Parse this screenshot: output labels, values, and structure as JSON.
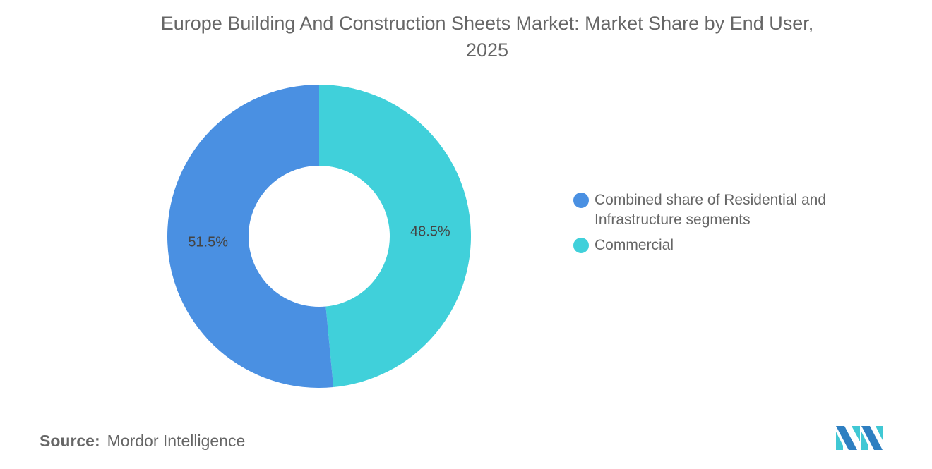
{
  "chart_data": {
    "type": "pie",
    "donut": true,
    "title": "Europe Building And Construction Sheets Market: Market Share by End User, 2025",
    "slices": [
      {
        "label": "Combined share of Residential and Infrastructure segments",
        "value": 51.5,
        "data_label": "51.5%",
        "color": "#4a90e2"
      },
      {
        "label": "Commercial",
        "value": 48.5,
        "data_label": "48.5%",
        "color": "#40d0da"
      }
    ],
    "legend_position": "right"
  },
  "title_line1": "Europe Building And Construction Sheets Market: Market Share by End User,",
  "title_line2": "2025",
  "source_label": "Source:",
  "source_value": "Mordor Intelligence",
  "logo_text": "Mordor Intelligence"
}
